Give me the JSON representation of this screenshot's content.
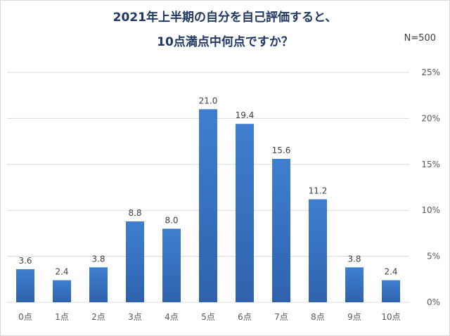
{
  "header": {
    "title_line1": "2021年上半期の自分を自己評価すると、",
    "title_line2": "10点満点中何点ですか？",
    "sample_size": "N=500"
  },
  "chart_data": {
    "type": "bar",
    "title": "2021年上半期の自分を自己評価すると、10点満点中何点ですか？",
    "categories": [
      "0点",
      "1点",
      "2点",
      "3点",
      "4点",
      "5点",
      "6点",
      "7点",
      "8点",
      "9点",
      "10点"
    ],
    "values": [
      3.6,
      2.4,
      3.8,
      8.8,
      8.0,
      21.0,
      19.4,
      15.6,
      11.2,
      3.8,
      2.4
    ],
    "value_labels": [
      "3.6",
      "2.4",
      "3.8",
      "8.8",
      "8.0",
      "21.0",
      "19.4",
      "15.6",
      "11.2",
      "3.8",
      "2.4"
    ],
    "y_ticks": [
      "0%",
      "5%",
      "10%",
      "15%",
      "20%",
      "25%"
    ],
    "ylim": [
      0,
      25
    ],
    "y_axis_side": "right",
    "grid": true,
    "legend": "none",
    "bar_color": "#3a78c9"
  }
}
